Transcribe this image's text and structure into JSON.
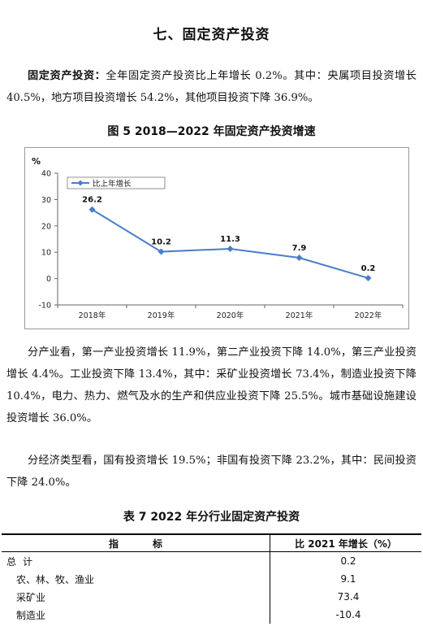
{
  "section_title": "七、固定资产投资",
  "para1": {
    "lead": "固定资产投资：",
    "text": "全年固定资产投资比上年增长 0.2%。其中：央属项目投资增长 40.5%，地方项目投资增长 54.2%，其他项目投资下降 36.9%。"
  },
  "figure_caption": "图 5   2018—2022 年固定资产投资增速",
  "chart_data": {
    "type": "line",
    "title": "图 5   2018—2022 年固定资产投资增速",
    "ylabel": "%",
    "ylim": [
      -10,
      40
    ],
    "yticks": [
      -10,
      0,
      10,
      20,
      30,
      40
    ],
    "categories": [
      "2018年",
      "2019年",
      "2020年",
      "2021年",
      "2022年"
    ],
    "series": [
      {
        "name": "比上年增长",
        "values": [
          26.2,
          10.2,
          11.3,
          7.9,
          0.2
        ],
        "labels": [
          "26.2",
          "10.2",
          "11.3",
          "7.9",
          "0.2"
        ]
      }
    ],
    "legend_position": "top-left",
    "grid": false,
    "colors": {
      "line": "#4a7ec7",
      "marker": "#4a7ec7"
    }
  },
  "para2": "分产业看，第一产业投资增长 11.9%，第二产业投资下降 14.0%，第三产业投资增长 4.4%。工业投资下降 13.4%，其中：采矿业投资增长 73.4%，制造业投资下降 10.4%，电力、热力、燃气及水的生产和供应业投资下降 25.5%。城市基础设施建设投资增长 36.0%。",
  "para3": "分经济类型看，国有投资增长 19.5%；非国有投资下降 23.2%，其中：民间投资下降 24.0%。",
  "table_caption": "表 7   2022 年分行业固定资产投资",
  "table": {
    "header_left_a": "指",
    "header_left_b": "标",
    "header_right": "比 2021 年增长（%）",
    "total_a": "总",
    "total_b": "计",
    "rows": [
      {
        "name": "农、林、牧、渔业",
        "value": "9.1"
      },
      {
        "name": "采矿业",
        "value": "73.4"
      },
      {
        "name": "制造业",
        "value": "-10.4"
      }
    ],
    "total_value": "0.2"
  }
}
